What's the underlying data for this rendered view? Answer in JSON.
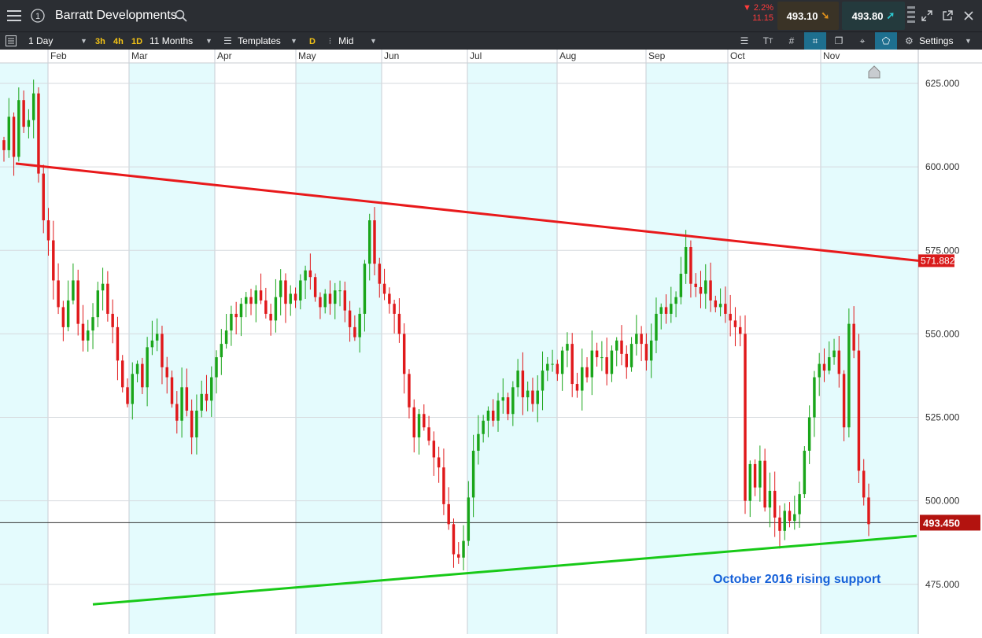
{
  "app": {
    "instrument": "Barratt Developments",
    "change_pct": "▼ 2.2%",
    "change_abs": "11.15",
    "sell_price": "493.10",
    "buy_price": "493.80"
  },
  "toolbar": {
    "interval": "1 Day",
    "quick_intervals": [
      "3h",
      "4h",
      "1D"
    ],
    "range": "11 Months",
    "templates": "Templates",
    "price_type_chip": "D",
    "price_type": "Mid",
    "settings": "Settings"
  },
  "colors": {
    "bg_dark": "#2b2e33",
    "up_candle": "#1aa51a",
    "down_candle": "#e0191b",
    "resistance": "#e8191b",
    "support": "#18c918",
    "band": "#e4fbfd",
    "annotation": "#1560d8"
  },
  "chart_data": {
    "type": "candlestick",
    "title": "",
    "x_month_labels": [
      "Feb",
      "Mar",
      "Apr",
      "May",
      "Jun",
      "Jul",
      "Aug",
      "Sep",
      "Oct",
      "Nov"
    ],
    "y_tick_labels": [
      "625.000",
      "600.000",
      "575.000",
      "550.000",
      "525.000",
      "500.000",
      "475.000"
    ],
    "y_ticks": [
      625,
      600,
      575,
      550,
      525,
      500,
      475
    ],
    "ylim": [
      468,
      636
    ],
    "grid": true,
    "current_price_label": "493.450",
    "current_price": 493.45,
    "resistance_label": "571.882",
    "resistance": {
      "start": 601,
      "end": 571.9
    },
    "support": {
      "start": 469,
      "end": 489.5
    },
    "annotation": "October 2016 rising support",
    "closes": [
      605,
      615,
      603,
      620,
      612,
      614,
      622,
      598,
      584,
      578,
      566,
      558,
      552,
      560,
      566,
      553,
      548,
      551,
      555,
      563,
      565,
      556,
      552,
      542,
      534,
      529,
      538,
      541,
      534,
      546,
      548,
      550,
      540,
      537,
      529,
      524,
      534,
      527,
      519,
      527,
      532,
      530,
      537,
      543,
      547,
      551,
      556,
      555,
      559,
      561,
      559,
      563,
      560,
      556,
      554,
      561,
      566,
      559,
      562,
      560,
      566,
      569,
      567,
      561,
      558,
      562,
      559,
      563,
      563,
      557,
      552,
      549,
      556,
      571,
      584,
      571,
      565,
      562,
      559,
      556,
      550,
      538,
      528,
      519,
      526,
      522,
      518,
      513,
      510,
      499,
      493,
      484,
      483,
      488,
      501,
      515,
      520,
      524,
      527,
      524,
      530,
      531,
      526,
      534,
      539,
      531,
      533,
      529,
      533,
      539,
      541,
      541,
      538,
      545,
      547,
      535,
      533,
      540,
      537,
      545,
      543,
      543,
      538,
      545,
      548,
      544,
      540,
      547,
      550,
      547,
      542,
      548,
      556,
      558,
      556,
      559,
      561,
      568,
      576,
      565,
      564,
      562,
      566,
      560,
      558,
      559,
      556,
      554,
      552,
      550,
      500,
      511,
      504,
      512,
      498,
      503,
      495,
      491,
      497,
      494,
      496,
      502,
      515,
      525,
      537,
      541,
      539,
      543,
      545,
      538,
      522,
      553,
      545,
      509,
      501,
      493
    ]
  }
}
